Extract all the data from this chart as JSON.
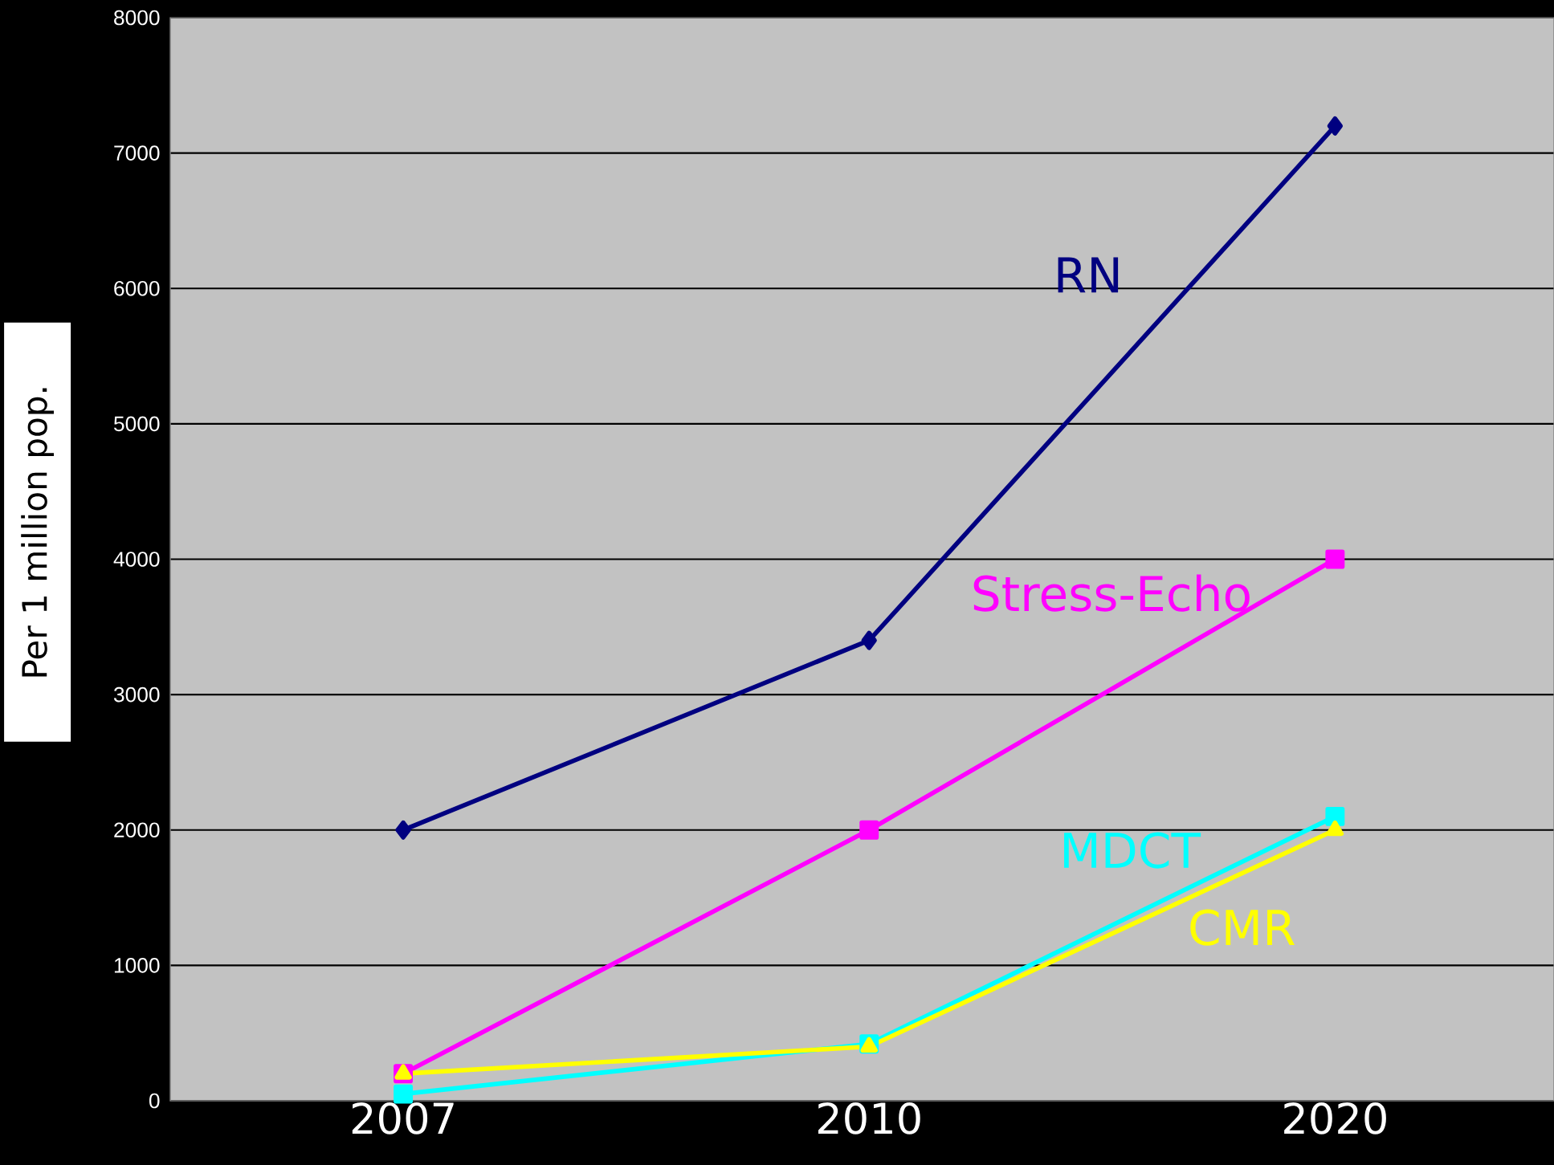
{
  "chart_data": {
    "type": "line",
    "ylabel": "Per 1 million pop.",
    "categories": [
      "2007",
      "2010",
      "2020"
    ],
    "series": [
      {
        "name": "RN",
        "color": "#000080",
        "marker": "diamond",
        "values": [
          2000,
          3400,
          7200
        ]
      },
      {
        "name": "Stress-Echo",
        "color": "#ff00ff",
        "marker": "square",
        "values": [
          200,
          2000,
          4000
        ]
      },
      {
        "name": "MDCT",
        "color": "#00ffff",
        "marker": "square",
        "values": [
          50,
          420,
          2100
        ]
      },
      {
        "name": "CMR",
        "color": "#ffff00",
        "marker": "triangle",
        "values": [
          200,
          400,
          2000
        ]
      }
    ],
    "ylim": [
      0,
      8000
    ],
    "yticks": [
      0,
      1000,
      2000,
      3000,
      4000,
      5000,
      6000,
      7000,
      8000
    ],
    "grid": "y",
    "legend": false,
    "line_style": "solid"
  }
}
